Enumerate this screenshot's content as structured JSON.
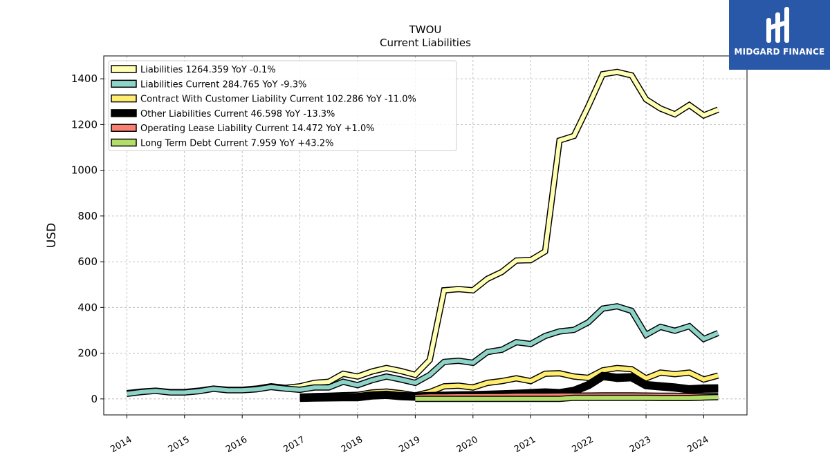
{
  "chart_data": {
    "type": "line",
    "title": "TWOU",
    "subtitle": "Current  Liabilities",
    "ylabel": "USD",
    "xlabel": "",
    "xlim": [
      2013.6,
      2024.75
    ],
    "ylim": [
      -70,
      1500
    ],
    "yticks": [
      0,
      200,
      400,
      600,
      800,
      1000,
      1200,
      1400
    ],
    "xticks": [
      2014,
      2015,
      2016,
      2017,
      2018,
      2019,
      2020,
      2021,
      2022,
      2023,
      2024
    ],
    "xtick_labels": [
      "2014",
      "2015",
      "2016",
      "2017",
      "2018",
      "2019",
      "2020",
      "2021",
      "2022",
      "2023",
      "2024"
    ],
    "grid": true,
    "legend_position": "top-left",
    "series": [
      {
        "name": "Liabilities",
        "legend_label": "Liabilities  1264.359 YoY -0.1%",
        "color": "#ffffb3",
        "width": 6,
        "x": [
          2014.0,
          2014.25,
          2014.5,
          2014.75,
          2015.0,
          2015.25,
          2015.5,
          2015.75,
          2016.0,
          2016.25,
          2016.5,
          2016.75,
          2017.0,
          2017.25,
          2017.5,
          2017.75,
          2018.0,
          2018.25,
          2018.5,
          2018.75,
          2019.0,
          2019.25,
          2019.5,
          2019.75,
          2020.0,
          2020.25,
          2020.5,
          2020.75,
          2021.0,
          2021.25,
          2021.5,
          2021.75,
          2022.0,
          2022.25,
          2022.5,
          2022.75,
          2023.0,
          2023.25,
          2023.5,
          2023.75,
          2024.0,
          2024.25
        ],
        "y": [
          25,
          32,
          36,
          30,
          30,
          36,
          45,
          40,
          40,
          45,
          55,
          48,
          55,
          70,
          75,
          110,
          98,
          120,
          135,
          122,
          105,
          170,
          475,
          480,
          475,
          525,
          555,
          605,
          607,
          645,
          1130,
          1150,
          1280,
          1420,
          1430,
          1415,
          1310,
          1270,
          1245,
          1285,
          1240,
          1265
        ]
      },
      {
        "name": "Liabilities Current",
        "legend_label": "Liabilities Current  284.765 YoY -9.3%",
        "color": "#8dd3c7",
        "width": 6,
        "x": [
          2014.0,
          2014.25,
          2014.5,
          2014.75,
          2015.0,
          2015.25,
          2015.5,
          2015.75,
          2016.0,
          2016.25,
          2016.5,
          2016.75,
          2017.0,
          2017.25,
          2017.5,
          2017.75,
          2018.0,
          2018.25,
          2018.5,
          2018.75,
          2019.0,
          2019.25,
          2019.5,
          2019.75,
          2020.0,
          2020.25,
          2020.5,
          2020.75,
          2021.0,
          2021.25,
          2021.5,
          2021.75,
          2022.0,
          2022.25,
          2022.5,
          2022.75,
          2023.0,
          2023.25,
          2023.5,
          2023.75,
          2024.0,
          2024.25
        ],
        "y": [
          22,
          30,
          35,
          28,
          28,
          34,
          44,
          38,
          38,
          42,
          52,
          45,
          40,
          50,
          50,
          75,
          60,
          82,
          98,
          85,
          70,
          105,
          162,
          167,
          158,
          205,
          215,
          248,
          240,
          275,
          295,
          302,
          335,
          395,
          405,
          385,
          280,
          315,
          298,
          318,
          262,
          288
        ]
      },
      {
        "name": "Contract With Customer Liability Current",
        "legend_label": "Contract With Customer Liability Current  102.286 YoY -11.0%",
        "color": "#ffed6f",
        "width": 6,
        "x": [
          2017.0,
          2017.25,
          2017.5,
          2017.75,
          2018.0,
          2018.25,
          2018.5,
          2018.75,
          2019.0,
          2019.25,
          2019.5,
          2019.75,
          2020.0,
          2020.25,
          2020.5,
          2020.75,
          2021.0,
          2021.25,
          2021.5,
          2021.75,
          2022.0,
          2022.25,
          2022.5,
          2022.75,
          2023.0,
          2023.25,
          2023.5,
          2023.75,
          2024.0,
          2024.25
        ],
        "y": [
          10,
          12,
          14,
          16,
          18,
          28,
          32,
          25,
          15,
          30,
          55,
          58,
          50,
          70,
          78,
          90,
          78,
          110,
          112,
          98,
          92,
          125,
          135,
          130,
          90,
          115,
          108,
          115,
          85,
          102
        ]
      },
      {
        "name": "Other Liabilities Current",
        "legend_label": "Other Liabilities Current  46.598 YoY -13.3%",
        "color": "#000000",
        "width": 9,
        "x": [
          2017.0,
          2017.25,
          2017.5,
          2017.75,
          2018.0,
          2018.25,
          2018.5,
          2018.75,
          2019.0,
          2019.25,
          2019.5,
          2019.75,
          2020.0,
          2020.25,
          2020.5,
          2020.75,
          2021.0,
          2021.25,
          2021.5,
          2021.75,
          2022.0,
          2022.25,
          2022.5,
          2022.75,
          2023.0,
          2023.25,
          2023.5,
          2023.75,
          2024.0,
          2024.25
        ],
        "y": [
          5,
          6,
          7,
          8,
          8,
          15,
          18,
          12,
          10,
          12,
          14,
          15,
          16,
          18,
          20,
          22,
          25,
          28,
          25,
          35,
          60,
          100,
          92,
          95,
          60,
          55,
          50,
          42,
          45,
          46
        ]
      },
      {
        "name": "Operating Lease Liability Current",
        "legend_label": "Operating Lease Liability Current  14.472 YoY +1.0%",
        "color": "#fb8072",
        "width": 5,
        "x": [
          2019.0,
          2019.25,
          2019.5,
          2019.75,
          2020.0,
          2020.25,
          2020.5,
          2020.75,
          2021.0,
          2021.25,
          2021.5,
          2021.75,
          2022.0,
          2022.25,
          2022.5,
          2022.75,
          2023.0,
          2023.25,
          2023.5,
          2023.75,
          2024.0,
          2024.25
        ],
        "y": [
          10,
          12,
          12,
          13,
          13,
          14,
          14,
          15,
          15,
          15,
          16,
          16,
          16,
          17,
          17,
          17,
          16,
          15,
          15,
          14,
          14,
          14
        ]
      },
      {
        "name": "Long Term Debt Current",
        "legend_label": "Long Term Debt Current  7.959 YoY +43.2%",
        "color": "#b3de69",
        "width": 6,
        "x": [
          2019.0,
          2019.25,
          2019.5,
          2019.75,
          2020.0,
          2020.25,
          2020.5,
          2020.75,
          2021.0,
          2021.25,
          2021.5,
          2021.75,
          2022.0,
          2022.25,
          2022.5,
          2022.75,
          2023.0,
          2023.25,
          2023.5,
          2023.75,
          2024.0,
          2024.25
        ],
        "y": [
          0,
          0,
          0,
          0,
          0,
          0,
          0,
          0,
          0,
          0,
          0,
          5,
          5,
          5,
          5,
          5,
          5,
          4,
          4,
          4,
          6,
          8
        ]
      }
    ]
  },
  "logo": {
    "text": "MIDGARD FINANCE",
    "color": "#2a58a8"
  }
}
